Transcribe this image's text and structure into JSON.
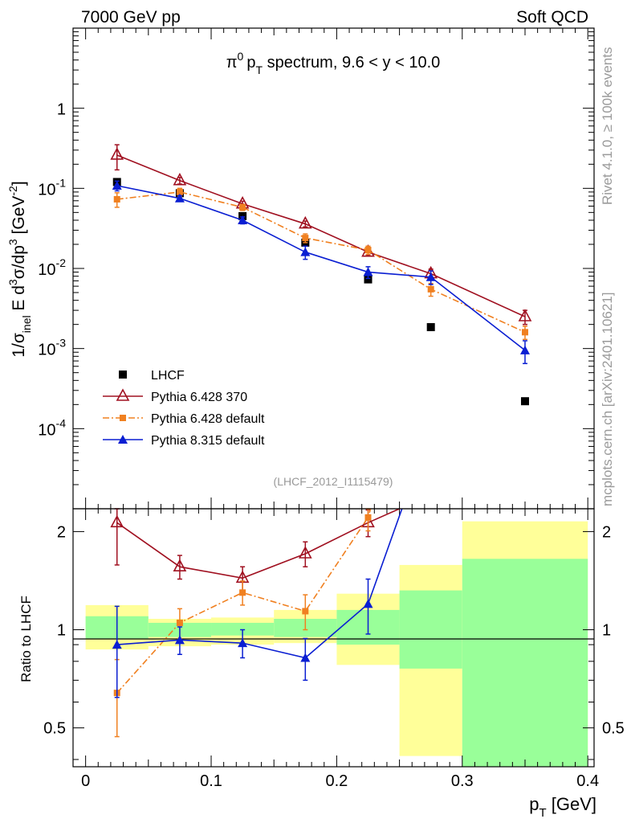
{
  "header": {
    "left": "7000 GeV pp",
    "right": "Soft QCD"
  },
  "side_text": {
    "rivet": "Rivet 4.1.0, ≥ 100k events",
    "mcplots": "mcplots.cern.ch [arXiv:2401.10621]"
  },
  "chart_data": [
    {
      "type": "scatter",
      "panel": "main",
      "title": {
        "pi": "π",
        "sup0": "0",
        "p": "p",
        "subT": "T",
        "rest": " spectrum, 9.6 < y < 10.0"
      },
      "ylabel": {
        "a": "1/σ",
        "sub_inel": "inel",
        "b": " E d",
        "sup3a": "3",
        "c": "σ/dp",
        "sup3b": "3",
        "d": " [GeV",
        "supm2": "-2",
        "e": "]"
      },
      "yscale": "log",
      "xlim": [
        -0.01,
        0.405
      ],
      "ylim": [
        1e-05,
        10
      ],
      "ytick_labels": [
        {
          "base": "10",
          "exp": "-4"
        },
        {
          "base": "10",
          "exp": "-3"
        },
        {
          "base": "10",
          "exp": "-2"
        },
        {
          "base": "10",
          "exp": "-1"
        },
        {
          "base": "1",
          "exp": ""
        }
      ],
      "ytick_values": [
        0.0001,
        0.001,
        0.01,
        0.1,
        1
      ],
      "watermark": "(LHCF_2012_I1115479)",
      "legend_position": "lower-left",
      "series": [
        {
          "name": "LHCF",
          "color": "#000000",
          "marker": "square",
          "line": "none",
          "x": [
            0.025,
            0.075,
            0.125,
            0.175,
            0.225,
            0.275,
            0.35
          ],
          "y": [
            0.12,
            0.087,
            0.045,
            0.021,
            0.0073,
            0.00185,
            0.00022
          ]
        },
        {
          "name": "Pythia 6.428 370",
          "color": "#a01020",
          "marker": "open-triangle",
          "line": "solid",
          "x": [
            0.025,
            0.075,
            0.125,
            0.175,
            0.225,
            0.275,
            0.35
          ],
          "y": [
            0.26,
            0.125,
            0.064,
            0.036,
            0.016,
            0.0086,
            0.0025
          ],
          "err": [
            0.09,
            0.012,
            0.005,
            0.003,
            0.0015,
            0.0012,
            0.0005
          ]
        },
        {
          "name": "Pythia 6.428 default",
          "color": "#f08020",
          "marker": "square-small",
          "line": "dashdot",
          "x": [
            0.025,
            0.075,
            0.125,
            0.175,
            0.225,
            0.275,
            0.35
          ],
          "y": [
            0.073,
            0.09,
            0.058,
            0.024,
            0.017,
            0.0055,
            0.0016
          ],
          "err": [
            0.015,
            0.01,
            0.005,
            0.003,
            0.002,
            0.001,
            0.0003
          ]
        },
        {
          "name": "Pythia 8.315 default",
          "color": "#0a1ed2",
          "marker": "triangle",
          "line": "solid",
          "x": [
            0.025,
            0.075,
            0.125,
            0.175,
            0.225,
            0.275,
            0.35
          ],
          "y": [
            0.108,
            0.075,
            0.04,
            0.016,
            0.009,
            0.0078,
            0.00095
          ],
          "err": [
            0.015,
            0.006,
            0.004,
            0.003,
            0.0015,
            0.0015,
            0.0003
          ]
        }
      ]
    },
    {
      "type": "scatter",
      "panel": "ratio",
      "ylabel": "Ratio to LHCF",
      "xlabel": {
        "p": "p",
        "subT": "T",
        "rest": " [GeV]"
      },
      "xlim": [
        -0.01,
        0.405
      ],
      "ylim": [
        0.38,
        2.35
      ],
      "yscale": "log",
      "ytick_values": [
        0.5,
        1,
        2
      ],
      "ytick_labels": [
        "0.5",
        "1",
        "2"
      ],
      "xtick_values": [
        0,
        0.1,
        0.2,
        0.3,
        0.4
      ],
      "xtick_labels": [
        "0",
        "0.1",
        "0.2",
        "0.3",
        "0.4"
      ],
      "bands": [
        {
          "x0": 0.0,
          "x1": 0.05,
          "yellow": [
            0.87,
            1.19
          ],
          "green": [
            0.94,
            1.1
          ]
        },
        {
          "x0": 0.05,
          "x1": 0.1,
          "yellow": [
            0.89,
            1.08
          ],
          "green": [
            0.95,
            1.05
          ]
        },
        {
          "x0": 0.1,
          "x1": 0.15,
          "yellow": [
            0.9,
            1.09
          ],
          "green": [
            0.96,
            1.05
          ]
        },
        {
          "x0": 0.15,
          "x1": 0.2,
          "yellow": [
            0.91,
            1.15
          ],
          "green": [
            0.95,
            1.08
          ]
        },
        {
          "x0": 0.2,
          "x1": 0.25,
          "yellow": [
            0.78,
            1.29
          ],
          "green": [
            0.9,
            1.15
          ]
        },
        {
          "x0": 0.25,
          "x1": 0.3,
          "yellow": [
            0.41,
            1.58
          ],
          "green": [
            0.76,
            1.32
          ]
        },
        {
          "x0": 0.3,
          "x1": 0.4,
          "yellow": [
            0.38,
            2.15
          ],
          "green": [
            0.38,
            1.65
          ]
        }
      ],
      "series": [
        {
          "name": "Pythia 6.428 370",
          "color": "#a01020",
          "marker": "open-triangle",
          "line": "solid",
          "x": [
            0.025,
            0.075,
            0.125,
            0.175,
            0.225,
            0.25
          ],
          "y": [
            2.13,
            1.56,
            1.44,
            1.71,
            2.13,
            2.35
          ],
          "err": [
            0.55,
            0.13,
            0.12,
            0.15,
            0.2,
            0
          ]
        },
        {
          "name": "Pythia 6.428 default",
          "color": "#f08020",
          "marker": "square-small",
          "line": "dashdot",
          "x": [
            0.025,
            0.075,
            0.125,
            0.175,
            0.225,
            0.227
          ],
          "y": [
            0.64,
            1.05,
            1.3,
            1.14,
            2.21,
            2.35
          ],
          "err": [
            0.17,
            0.11,
            0.11,
            0.14,
            0.2,
            0
          ]
        },
        {
          "name": "Pythia 8.315 default",
          "color": "#0a1ed2",
          "marker": "triangle",
          "line": "solid",
          "x": [
            0.025,
            0.075,
            0.125,
            0.175,
            0.225,
            0.252
          ],
          "y": [
            0.9,
            0.93,
            0.91,
            0.82,
            1.2,
            2.35
          ],
          "err": [
            0.28,
            0.09,
            0.09,
            0.12,
            0.23,
            0
          ]
        }
      ]
    }
  ]
}
